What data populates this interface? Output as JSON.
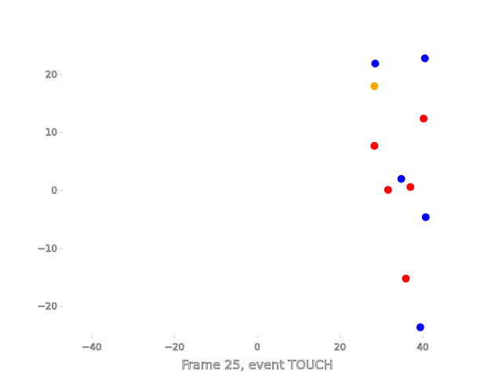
{
  "chart_data": {
    "type": "scatter",
    "xlabel": "Frame 25, event TOUCH",
    "ylabel": "",
    "xlim": [
      -47,
      47
    ],
    "ylim": [
      -25,
      25
    ],
    "xticks": [
      -40,
      -20,
      0,
      20,
      40
    ],
    "yticks": [
      -20,
      -10,
      0,
      10,
      20
    ],
    "xtick_labels": [
      "−40",
      "−20",
      "0",
      "20",
      "40"
    ],
    "ytick_labels": [
      "−20",
      "−10",
      "0",
      "10",
      "20"
    ],
    "grid": false,
    "points": [
      {
        "x": 28.5,
        "y": 21.9,
        "color": "#0000ff"
      },
      {
        "x": 40.5,
        "y": 22.8,
        "color": "#0000ff"
      },
      {
        "x": 28.3,
        "y": 18.0,
        "color": "#ffa500"
      },
      {
        "x": 40.2,
        "y": 12.4,
        "color": "#ff0000"
      },
      {
        "x": 28.3,
        "y": 7.7,
        "color": "#ff0000"
      },
      {
        "x": 34.8,
        "y": 2.0,
        "color": "#0000ff"
      },
      {
        "x": 31.6,
        "y": 0.1,
        "color": "#ff0000"
      },
      {
        "x": 37.0,
        "y": 0.6,
        "color": "#ff0000"
      },
      {
        "x": 40.7,
        "y": -4.6,
        "color": "#0000ff"
      },
      {
        "x": 35.9,
        "y": -15.2,
        "color": "#ff0000"
      },
      {
        "x": 39.4,
        "y": -23.6,
        "color": "#0000ff"
      }
    ]
  }
}
